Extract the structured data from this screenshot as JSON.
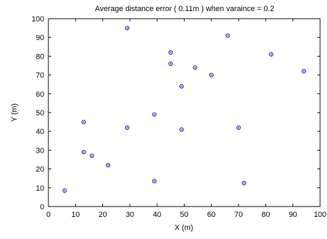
{
  "chart_data": {
    "type": "scatter",
    "title": "Average distance error ( 0.11m ) when varaince = 0.2",
    "xlabel": "X (m)",
    "ylabel": "Y (m)",
    "xlim": [
      0,
      100
    ],
    "ylim": [
      0,
      100
    ],
    "xticks": [
      "0",
      "10",
      "20",
      "30",
      "40",
      "50",
      "60",
      "70",
      "80",
      "90",
      "100"
    ],
    "yticks": [
      "0",
      "10",
      "20",
      "30",
      "40",
      "50",
      "60",
      "70",
      "80",
      "90",
      "100"
    ],
    "grid": false,
    "marker_color": "#1a1aa6",
    "points": [
      {
        "x": 6,
        "y": 8.5
      },
      {
        "x": 13,
        "y": 29
      },
      {
        "x": 13,
        "y": 45
      },
      {
        "x": 16,
        "y": 27
      },
      {
        "x": 22,
        "y": 22
      },
      {
        "x": 29,
        "y": 42
      },
      {
        "x": 29,
        "y": 95
      },
      {
        "x": 39,
        "y": 13.5
      },
      {
        "x": 39,
        "y": 49
      },
      {
        "x": 45,
        "y": 76
      },
      {
        "x": 45,
        "y": 82
      },
      {
        "x": 49,
        "y": 41
      },
      {
        "x": 49,
        "y": 64
      },
      {
        "x": 54,
        "y": 74
      },
      {
        "x": 60,
        "y": 70
      },
      {
        "x": 66,
        "y": 91
      },
      {
        "x": 70,
        "y": 42
      },
      {
        "x": 72,
        "y": 12.5
      },
      {
        "x": 82,
        "y": 81
      },
      {
        "x": 94,
        "y": 72
      }
    ]
  }
}
